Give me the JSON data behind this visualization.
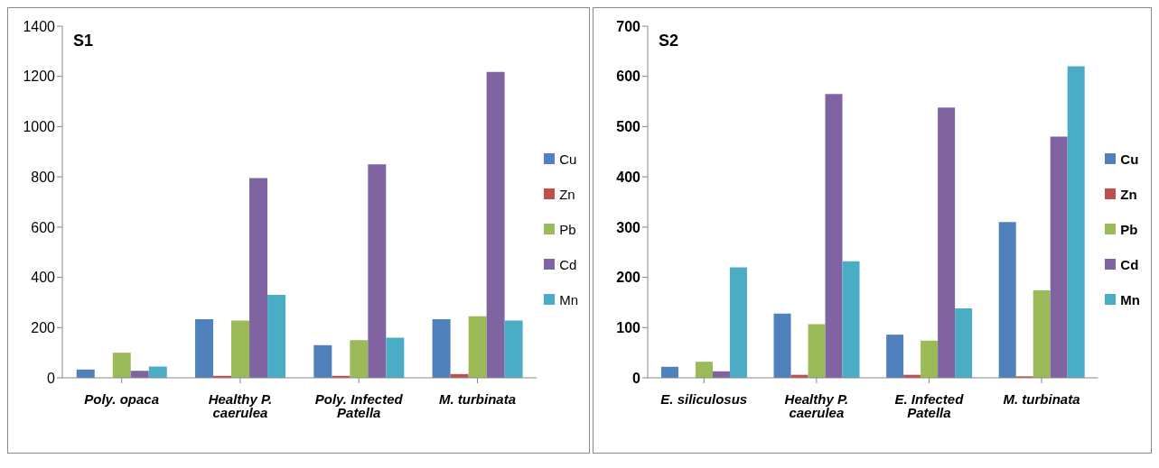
{
  "chart_data": [
    {
      "type": "bar",
      "title": "S1",
      "categories": [
        "Poly. opaca",
        "Healthy P. caerulea",
        "Poly. Infected Patella",
        "M. turbinata"
      ],
      "ylim": [
        0,
        1400
      ],
      "yticks": [
        0,
        200,
        400,
        600,
        800,
        1000,
        1200,
        1400
      ],
      "grid": false,
      "legend": "right",
      "series": [
        {
          "name": "Cu",
          "color": "#4f81bd",
          "values": [
            33,
            233,
            130,
            233
          ]
        },
        {
          "name": "Zn",
          "color": "#c0504d",
          "values": [
            0,
            8,
            8,
            15
          ]
        },
        {
          "name": "Pb",
          "color": "#9bbb59",
          "values": [
            100,
            228,
            150,
            245
          ]
        },
        {
          "name": "Cd",
          "color": "#8064a2",
          "values": [
            28,
            795,
            850,
            1218
          ]
        },
        {
          "name": "Mn",
          "color": "#4bacc6",
          "values": [
            45,
            330,
            160,
            228
          ]
        }
      ]
    },
    {
      "type": "bar",
      "title": "S2",
      "categories": [
        "E. siliculosus",
        "Healthy P. caerulea",
        "E. Infected Patella",
        "M. turbinata"
      ],
      "ylim": [
        0,
        700
      ],
      "yticks": [
        0,
        100,
        200,
        300,
        400,
        500,
        600,
        700
      ],
      "grid": false,
      "legend": "right",
      "series": [
        {
          "name": "Cu",
          "color": "#4f81bd",
          "values": [
            22,
            128,
            86,
            310
          ]
        },
        {
          "name": "Zn",
          "color": "#c0504d",
          "values": [
            0,
            6,
            6,
            3
          ]
        },
        {
          "name": "Pb",
          "color": "#9bbb59",
          "values": [
            32,
            107,
            74,
            174
          ]
        },
        {
          "name": "Cd",
          "color": "#8064a2",
          "values": [
            13,
            565,
            538,
            480
          ]
        },
        {
          "name": "Mn",
          "color": "#4bacc6",
          "values": [
            220,
            232,
            138,
            620
          ]
        }
      ]
    }
  ]
}
